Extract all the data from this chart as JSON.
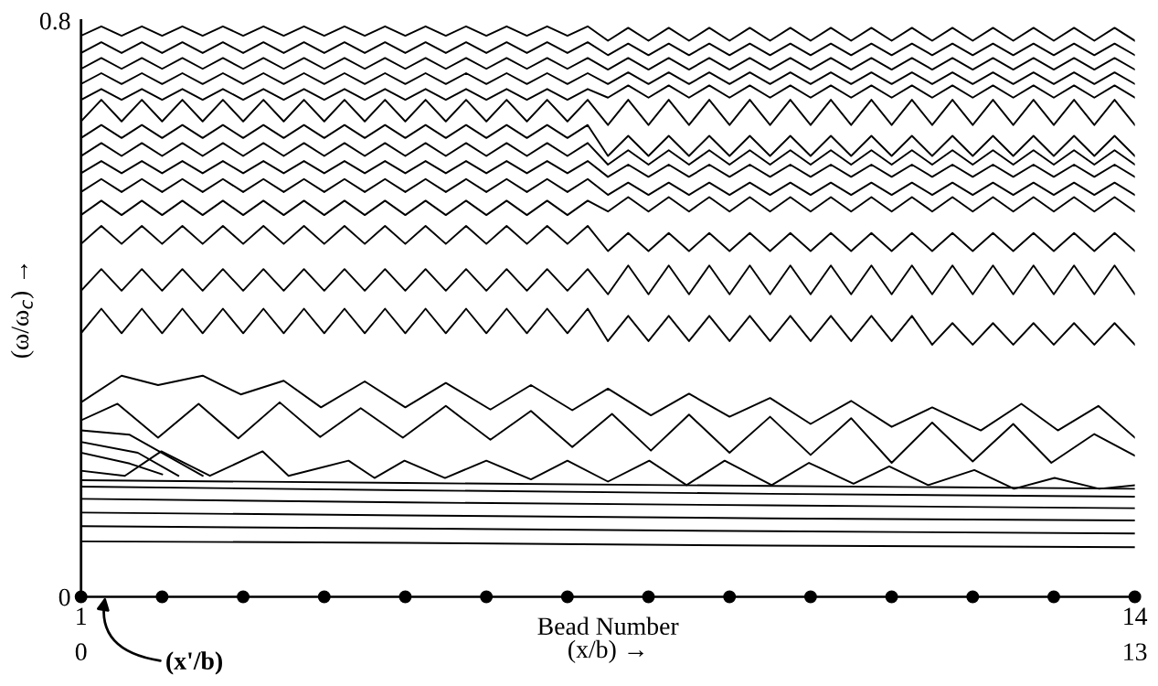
{
  "chart_data": {
    "type": "line",
    "ylabel": "(ω/ω$_{c}$) →",
    "xlabel": "(x/b) →",
    "x2label": "Bead Number",
    "annotations": [
      {
        "text": "(x'/b)",
        "x": 0.3,
        "y": 0
      }
    ],
    "xlim": [
      0,
      13
    ],
    "ylim": [
      0,
      0.8
    ],
    "xticks": [
      0,
      13
    ],
    "x2lim": [
      1,
      14
    ],
    "x2ticks": [
      1,
      14
    ],
    "yticks": [
      0,
      0.8
    ],
    "grid": false,
    "legend": false,
    "marker": "none",
    "line_style": "solid",
    "x": [
      0,
      0.25,
      0.5,
      0.75,
      1,
      1.25,
      1.5,
      1.75,
      2,
      2.25,
      2.5,
      2.75,
      3,
      3.25,
      3.5,
      3.75,
      4,
      4.25,
      4.5,
      4.75,
      5,
      5.25,
      5.5,
      5.75,
      6,
      6.25,
      6.5,
      6.75,
      7,
      7.25,
      7.5,
      7.75,
      8,
      8.25,
      8.5,
      8.75,
      9,
      9.25,
      9.5,
      9.75,
      10,
      10.25,
      10.5,
      10.75,
      11,
      11.25,
      11.5,
      11.75,
      12,
      12.25,
      12.5,
      12.75,
      13
    ],
    "series": [
      {
        "color": "#000000",
        "values": [
          0.779,
          0.792,
          0.779,
          0.792,
          0.779,
          0.792,
          0.779,
          0.792,
          0.779,
          0.792,
          0.779,
          0.792,
          0.779,
          0.792,
          0.779,
          0.792,
          0.779,
          0.792,
          0.779,
          0.792,
          0.779,
          0.792,
          0.779,
          0.792,
          0.779,
          0.792,
          0.772,
          0.79,
          0.772,
          0.79,
          0.772,
          0.79,
          0.772,
          0.79,
          0.772,
          0.79,
          0.772,
          0.79,
          0.772,
          0.79,
          0.772,
          0.79,
          0.772,
          0.79,
          0.772,
          0.79,
          0.772,
          0.79,
          0.772,
          0.79,
          0.772,
          0.79,
          0.772
        ]
      },
      {
        "color": "#000000",
        "values": [
          0.755,
          0.77,
          0.755,
          0.77,
          0.755,
          0.77,
          0.755,
          0.77,
          0.755,
          0.77,
          0.755,
          0.77,
          0.755,
          0.77,
          0.755,
          0.77,
          0.755,
          0.77,
          0.755,
          0.77,
          0.755,
          0.77,
          0.755,
          0.77,
          0.755,
          0.77,
          0.752,
          0.768,
          0.752,
          0.768,
          0.752,
          0.768,
          0.752,
          0.768,
          0.752,
          0.768,
          0.752,
          0.768,
          0.752,
          0.768,
          0.752,
          0.768,
          0.752,
          0.768,
          0.752,
          0.768,
          0.752,
          0.768,
          0.752,
          0.768,
          0.752,
          0.768,
          0.752
        ]
      },
      {
        "color": "#000000",
        "values": [
          0.733,
          0.748,
          0.733,
          0.748,
          0.733,
          0.748,
          0.733,
          0.748,
          0.733,
          0.748,
          0.733,
          0.748,
          0.733,
          0.748,
          0.733,
          0.748,
          0.733,
          0.748,
          0.733,
          0.748,
          0.733,
          0.748,
          0.733,
          0.748,
          0.733,
          0.748,
          0.732,
          0.748,
          0.732,
          0.748,
          0.732,
          0.748,
          0.732,
          0.748,
          0.732,
          0.748,
          0.732,
          0.748,
          0.732,
          0.748,
          0.732,
          0.748,
          0.732,
          0.748,
          0.732,
          0.748,
          0.732,
          0.748,
          0.732,
          0.748,
          0.732,
          0.748,
          0.732
        ]
      },
      {
        "color": "#000000",
        "values": [
          0.712,
          0.727,
          0.712,
          0.727,
          0.712,
          0.727,
          0.712,
          0.727,
          0.712,
          0.727,
          0.712,
          0.727,
          0.712,
          0.727,
          0.712,
          0.727,
          0.712,
          0.727,
          0.712,
          0.727,
          0.712,
          0.727,
          0.712,
          0.727,
          0.712,
          0.727,
          0.712,
          0.728,
          0.712,
          0.728,
          0.712,
          0.728,
          0.712,
          0.728,
          0.712,
          0.728,
          0.712,
          0.728,
          0.712,
          0.728,
          0.712,
          0.728,
          0.712,
          0.728,
          0.712,
          0.728,
          0.712,
          0.728,
          0.712,
          0.728,
          0.712,
          0.728,
          0.712
        ]
      },
      {
        "color": "#000000",
        "values": [
          0.69,
          0.705,
          0.69,
          0.705,
          0.69,
          0.705,
          0.69,
          0.705,
          0.69,
          0.705,
          0.69,
          0.705,
          0.69,
          0.705,
          0.69,
          0.705,
          0.69,
          0.705,
          0.69,
          0.705,
          0.69,
          0.705,
          0.69,
          0.705,
          0.69,
          0.705,
          0.693,
          0.71,
          0.693,
          0.71,
          0.693,
          0.71,
          0.693,
          0.71,
          0.693,
          0.71,
          0.693,
          0.71,
          0.693,
          0.71,
          0.693,
          0.71,
          0.693,
          0.71,
          0.693,
          0.71,
          0.693,
          0.71,
          0.693,
          0.71,
          0.693,
          0.71,
          0.693
        ]
      },
      {
        "color": "#000000",
        "values": [
          0.66,
          0.69,
          0.66,
          0.69,
          0.66,
          0.69,
          0.66,
          0.69,
          0.66,
          0.69,
          0.66,
          0.69,
          0.66,
          0.69,
          0.66,
          0.69,
          0.66,
          0.69,
          0.66,
          0.69,
          0.66,
          0.69,
          0.66,
          0.69,
          0.66,
          0.69,
          0.655,
          0.69,
          0.655,
          0.69,
          0.655,
          0.69,
          0.655,
          0.69,
          0.655,
          0.69,
          0.655,
          0.69,
          0.655,
          0.69,
          0.655,
          0.69,
          0.655,
          0.69,
          0.655,
          0.69,
          0.655,
          0.69,
          0.655,
          0.69,
          0.655,
          0.69,
          0.655
        ]
      },
      {
        "color": "#000000",
        "values": [
          0.637,
          0.655,
          0.637,
          0.655,
          0.637,
          0.655,
          0.637,
          0.655,
          0.637,
          0.655,
          0.637,
          0.655,
          0.637,
          0.655,
          0.637,
          0.655,
          0.637,
          0.655,
          0.637,
          0.655,
          0.637,
          0.655,
          0.637,
          0.655,
          0.637,
          0.655,
          0.612,
          0.64,
          0.612,
          0.64,
          0.612,
          0.64,
          0.612,
          0.64,
          0.612,
          0.64,
          0.612,
          0.64,
          0.612,
          0.64,
          0.612,
          0.64,
          0.612,
          0.64,
          0.612,
          0.64,
          0.612,
          0.64,
          0.612,
          0.64,
          0.612,
          0.64,
          0.612
        ]
      },
      {
        "color": "#000000",
        "values": [
          0.612,
          0.63,
          0.612,
          0.63,
          0.612,
          0.63,
          0.612,
          0.63,
          0.612,
          0.63,
          0.612,
          0.63,
          0.612,
          0.63,
          0.612,
          0.63,
          0.612,
          0.63,
          0.612,
          0.63,
          0.612,
          0.63,
          0.612,
          0.63,
          0.612,
          0.63,
          0.6,
          0.62,
          0.6,
          0.62,
          0.6,
          0.62,
          0.6,
          0.62,
          0.6,
          0.62,
          0.6,
          0.62,
          0.6,
          0.62,
          0.6,
          0.62,
          0.6,
          0.62,
          0.6,
          0.62,
          0.6,
          0.62,
          0.6,
          0.62,
          0.6,
          0.62,
          0.6
        ]
      },
      {
        "color": "#000000",
        "values": [
          0.588,
          0.605,
          0.588,
          0.605,
          0.588,
          0.605,
          0.588,
          0.605,
          0.588,
          0.605,
          0.588,
          0.605,
          0.588,
          0.605,
          0.588,
          0.605,
          0.588,
          0.605,
          0.588,
          0.605,
          0.588,
          0.605,
          0.588,
          0.605,
          0.588,
          0.605,
          0.583,
          0.6,
          0.583,
          0.6,
          0.583,
          0.6,
          0.583,
          0.6,
          0.583,
          0.6,
          0.583,
          0.6,
          0.583,
          0.6,
          0.583,
          0.6,
          0.583,
          0.6,
          0.583,
          0.6,
          0.583,
          0.6,
          0.583,
          0.6,
          0.583,
          0.6,
          0.583
        ]
      },
      {
        "color": "#000000",
        "values": [
          0.562,
          0.58,
          0.562,
          0.58,
          0.562,
          0.58,
          0.562,
          0.58,
          0.562,
          0.58,
          0.562,
          0.58,
          0.562,
          0.58,
          0.562,
          0.58,
          0.562,
          0.58,
          0.562,
          0.58,
          0.562,
          0.58,
          0.562,
          0.58,
          0.562,
          0.58,
          0.558,
          0.575,
          0.558,
          0.575,
          0.558,
          0.575,
          0.558,
          0.575,
          0.558,
          0.575,
          0.558,
          0.575,
          0.558,
          0.575,
          0.558,
          0.575,
          0.558,
          0.575,
          0.558,
          0.575,
          0.558,
          0.575,
          0.558,
          0.575,
          0.558,
          0.575,
          0.558
        ]
      },
      {
        "color": "#000000",
        "values": [
          0.53,
          0.55,
          0.53,
          0.55,
          0.53,
          0.55,
          0.53,
          0.55,
          0.53,
          0.55,
          0.53,
          0.55,
          0.53,
          0.55,
          0.53,
          0.55,
          0.53,
          0.55,
          0.53,
          0.55,
          0.53,
          0.55,
          0.53,
          0.55,
          0.53,
          0.55,
          0.535,
          0.555,
          0.535,
          0.555,
          0.535,
          0.555,
          0.535,
          0.555,
          0.535,
          0.555,
          0.535,
          0.555,
          0.535,
          0.555,
          0.535,
          0.555,
          0.535,
          0.555,
          0.535,
          0.555,
          0.535,
          0.555,
          0.535,
          0.555,
          0.535,
          0.555,
          0.535
        ]
      },
      {
        "color": "#000000",
        "values": [
          0.49,
          0.515,
          0.49,
          0.515,
          0.49,
          0.515,
          0.49,
          0.515,
          0.49,
          0.515,
          0.49,
          0.515,
          0.49,
          0.515,
          0.49,
          0.515,
          0.49,
          0.515,
          0.49,
          0.515,
          0.49,
          0.515,
          0.49,
          0.515,
          0.49,
          0.515,
          0.48,
          0.505,
          0.48,
          0.505,
          0.48,
          0.505,
          0.48,
          0.505,
          0.48,
          0.505,
          0.48,
          0.505,
          0.48,
          0.505,
          0.48,
          0.505,
          0.48,
          0.505,
          0.48,
          0.505,
          0.48,
          0.505,
          0.48,
          0.505,
          0.48,
          0.505,
          0.48
        ]
      },
      {
        "color": "#000000",
        "values": [
          0.425,
          0.455,
          0.425,
          0.455,
          0.425,
          0.455,
          0.425,
          0.455,
          0.425,
          0.455,
          0.425,
          0.455,
          0.425,
          0.455,
          0.425,
          0.455,
          0.425,
          0.455,
          0.425,
          0.455,
          0.425,
          0.455,
          0.425,
          0.455,
          0.425,
          0.455,
          0.42,
          0.46,
          0.42,
          0.46,
          0.42,
          0.46,
          0.42,
          0.46,
          0.42,
          0.46,
          0.42,
          0.46,
          0.42,
          0.46,
          0.42,
          0.46,
          0.42,
          0.46,
          0.42,
          0.46,
          0.42,
          0.46,
          0.42,
          0.46,
          0.42,
          0.46,
          0.42
        ]
      },
      {
        "color": "#000000",
        "values": [
          0.366,
          0.4,
          0.366,
          0.4,
          0.366,
          0.4,
          0.366,
          0.4,
          0.366,
          0.4,
          0.366,
          0.4,
          0.366,
          0.4,
          0.366,
          0.4,
          0.366,
          0.4,
          0.366,
          0.4,
          0.366,
          0.4,
          0.366,
          0.4,
          0.366,
          0.4,
          0.355,
          0.39,
          0.355,
          0.39,
          0.355,
          0.39,
          0.355,
          0.39,
          0.355,
          0.39,
          0.355,
          0.39,
          0.355,
          0.39,
          0.355,
          0.39,
          0.35,
          0.38,
          0.35,
          0.38,
          0.35,
          0.38,
          0.35,
          0.38,
          0.35,
          0.38,
          0.35
        ]
      },
      {
        "color": "#000000",
        "x": [
          0,
          0.5,
          0.95,
          1.5,
          1.97,
          2.5,
          2.96,
          3.5,
          4.0,
          4.5,
          5.05,
          5.55,
          6.06,
          6.5,
          7.03,
          7.5,
          8.0,
          8.5,
          9.0,
          9.5,
          10.0,
          10.5,
          11.1,
          11.6,
          12.05,
          12.55,
          13
        ],
        "values": [
          0.27,
          0.307,
          0.294,
          0.307,
          0.281,
          0.3,
          0.263,
          0.299,
          0.263,
          0.297,
          0.26,
          0.294,
          0.259,
          0.289,
          0.252,
          0.282,
          0.25,
          0.276,
          0.24,
          0.272,
          0.236,
          0.263,
          0.231,
          0.268,
          0.231,
          0.265,
          0.221
        ]
      },
      {
        "color": "#000000",
        "x": [
          0,
          0.45,
          0.95,
          1.45,
          1.94,
          2.45,
          2.95,
          3.45,
          3.97,
          4.5,
          5.05,
          5.55,
          6.06,
          6.55,
          7.03,
          7.5,
          8.0,
          8.5,
          9.0,
          9.5,
          10.0,
          10.5,
          11.0,
          11.5,
          11.97,
          12.5,
          13
        ],
        "values": [
          0.245,
          0.268,
          0.221,
          0.268,
          0.22,
          0.27,
          0.222,
          0.262,
          0.221,
          0.265,
          0.218,
          0.258,
          0.208,
          0.254,
          0.203,
          0.253,
          0.2,
          0.25,
          0.197,
          0.248,
          0.186,
          0.242,
          0.188,
          0.24,
          0.186,
          0.226,
          0.196
        ]
      },
      {
        "color": "#000000",
        "x": [
          0,
          0.6,
          1.5
        ],
        "values": [
          0.231,
          0.225,
          0.168
        ]
      },
      {
        "color": "#000000",
        "x": [
          0,
          0.7,
          1.2
        ],
        "values": [
          0.215,
          0.2,
          0.168
        ]
      },
      {
        "color": "#000000",
        "x": [
          0,
          0.6,
          1.0
        ],
        "values": [
          0.2,
          0.185,
          0.17
        ]
      },
      {
        "color": "#000000",
        "x": [
          0,
          0.54,
          0.99,
          1.59,
          2.24,
          2.56,
          3.3,
          3.62,
          3.99,
          4.49,
          5.0,
          5.55,
          6.0,
          6.5,
          7.01,
          7.47,
          7.94,
          8.52,
          8.98,
          9.53,
          9.97,
          10.45,
          11.02,
          11.51,
          12.01,
          12.56,
          13
        ],
        "values": [
          0.175,
          0.168,
          0.202,
          0.168,
          0.202,
          0.168,
          0.189,
          0.165,
          0.189,
          0.165,
          0.189,
          0.163,
          0.189,
          0.16,
          0.189,
          0.155,
          0.189,
          0.155,
          0.186,
          0.157,
          0.181,
          0.155,
          0.176,
          0.15,
          0.165,
          0.15,
          0.155
        ]
      },
      {
        "color": "#000000",
        "x": [
          0,
          4,
          8.5,
          13
        ],
        "values": [
          0.162,
          0.158,
          0.154,
          0.15
        ]
      },
      {
        "color": "#000000",
        "x": [
          0,
          4,
          8.5,
          13
        ],
        "values": [
          0.153,
          0.148,
          0.143,
          0.139
        ]
      },
      {
        "color": "#000000",
        "x": [
          0,
          4,
          8.5,
          13
        ],
        "values": [
          0.136,
          0.131,
          0.127,
          0.123
        ]
      },
      {
        "color": "#000000",
        "x": [
          0,
          4,
          8.5,
          13
        ],
        "values": [
          0.117,
          0.113,
          0.109,
          0.106
        ]
      },
      {
        "color": "#000000",
        "x": [
          0,
          4,
          8.5,
          13
        ],
        "values": [
          0.098,
          0.095,
          0.091,
          0.088
        ]
      },
      {
        "color": "#000000",
        "x": [
          0,
          4,
          8.5,
          13
        ],
        "values": [
          0.077,
          0.075,
          0.071,
          0.069
        ]
      },
      {
        "color": "#000000",
        "marker": "circle",
        "x": [
          0,
          1,
          2,
          3,
          4,
          5,
          6,
          7,
          8,
          9,
          10,
          11,
          12,
          13
        ],
        "values": [
          0,
          0,
          0,
          0,
          0,
          0,
          0,
          0,
          0,
          0,
          0,
          0,
          0,
          0
        ]
      }
    ]
  }
}
